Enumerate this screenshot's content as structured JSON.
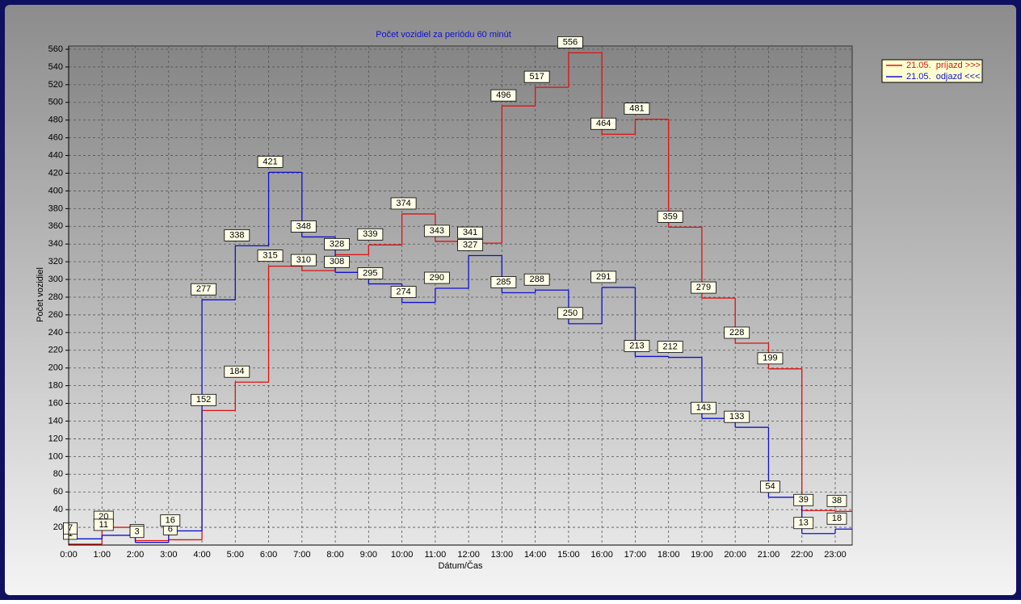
{
  "chart_data": {
    "type": "step",
    "title": "Počet vozidiel za periódu 60 minút",
    "x_label": "Dátum/Čas",
    "y_label": "Počet vozidiel",
    "categories": [
      "0:00",
      "1:00",
      "2:00",
      "3:00",
      "4:00",
      "5:00",
      "6:00",
      "7:00",
      "8:00",
      "9:00",
      "10:00",
      "11:00",
      "12:00",
      "13:00",
      "14:00",
      "15:00",
      "16:00",
      "17:00",
      "18:00",
      "19:00",
      "20:00",
      "21:00",
      "22:00",
      "23:00"
    ],
    "series": [
      {
        "name": "21.05.  príjazd >>>",
        "color": "#e01010",
        "values": [
          1,
          20,
          5,
          6,
          152,
          184,
          315,
          310,
          328,
          339,
          374,
          343,
          341,
          496,
          517,
          556,
          464,
          481,
          359,
          279,
          228,
          199,
          39,
          38
        ]
      },
      {
        "name": "21.05.  odjazd <<<",
        "color": "#1010d0",
        "values": [
          7,
          11,
          3,
          16,
          277,
          338,
          421,
          348,
          308,
          295,
          274,
          290,
          327,
          285,
          288,
          250,
          291,
          213,
          212,
          143,
          133,
          54,
          13,
          18
        ]
      }
    ],
    "ylim": [
      0,
      560
    ],
    "yticks": [
      20,
      40,
      60,
      80,
      100,
      120,
      140,
      160,
      180,
      200,
      220,
      240,
      260,
      280,
      300,
      320,
      340,
      360,
      380,
      400,
      420,
      440,
      460,
      480,
      500,
      520,
      540,
      560
    ],
    "grid": true,
    "legend": "top-right"
  }
}
